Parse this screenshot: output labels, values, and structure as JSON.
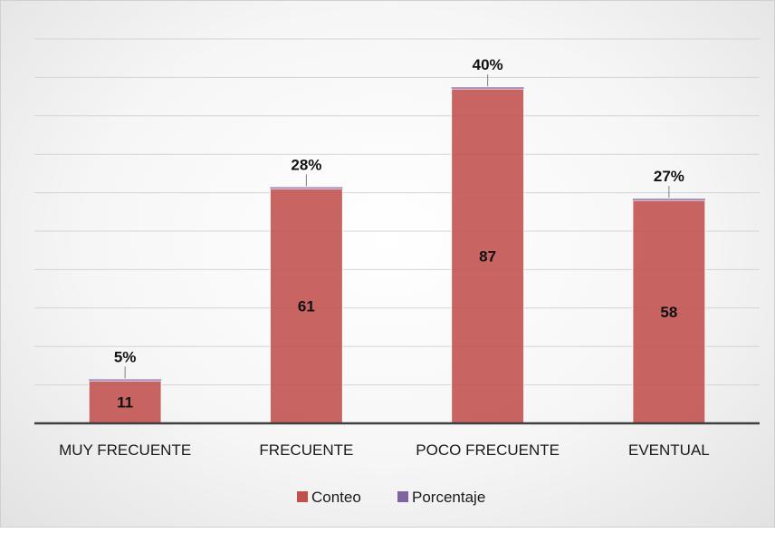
{
  "chart_data": {
    "type": "bar",
    "categories": [
      "MUY FRECUENTE",
      "FRECUENTE",
      "POCO FRECUENTE",
      "EVENTUAL"
    ],
    "series": [
      {
        "name": "Conteo",
        "values": [
          11,
          61,
          87,
          58
        ],
        "color": "#c0504d",
        "labels": [
          "11",
          "61",
          "87",
          "58"
        ]
      },
      {
        "name": "Porcentaje",
        "values": [
          0.05,
          0.28,
          0.4,
          0.27
        ],
        "color": "#8064a2",
        "labels": [
          "5%",
          "28%",
          "40%",
          "27%"
        ]
      }
    ],
    "stacked": true,
    "ylim": [
      0,
      100
    ],
    "grid": true,
    "legend_position": "bottom"
  }
}
